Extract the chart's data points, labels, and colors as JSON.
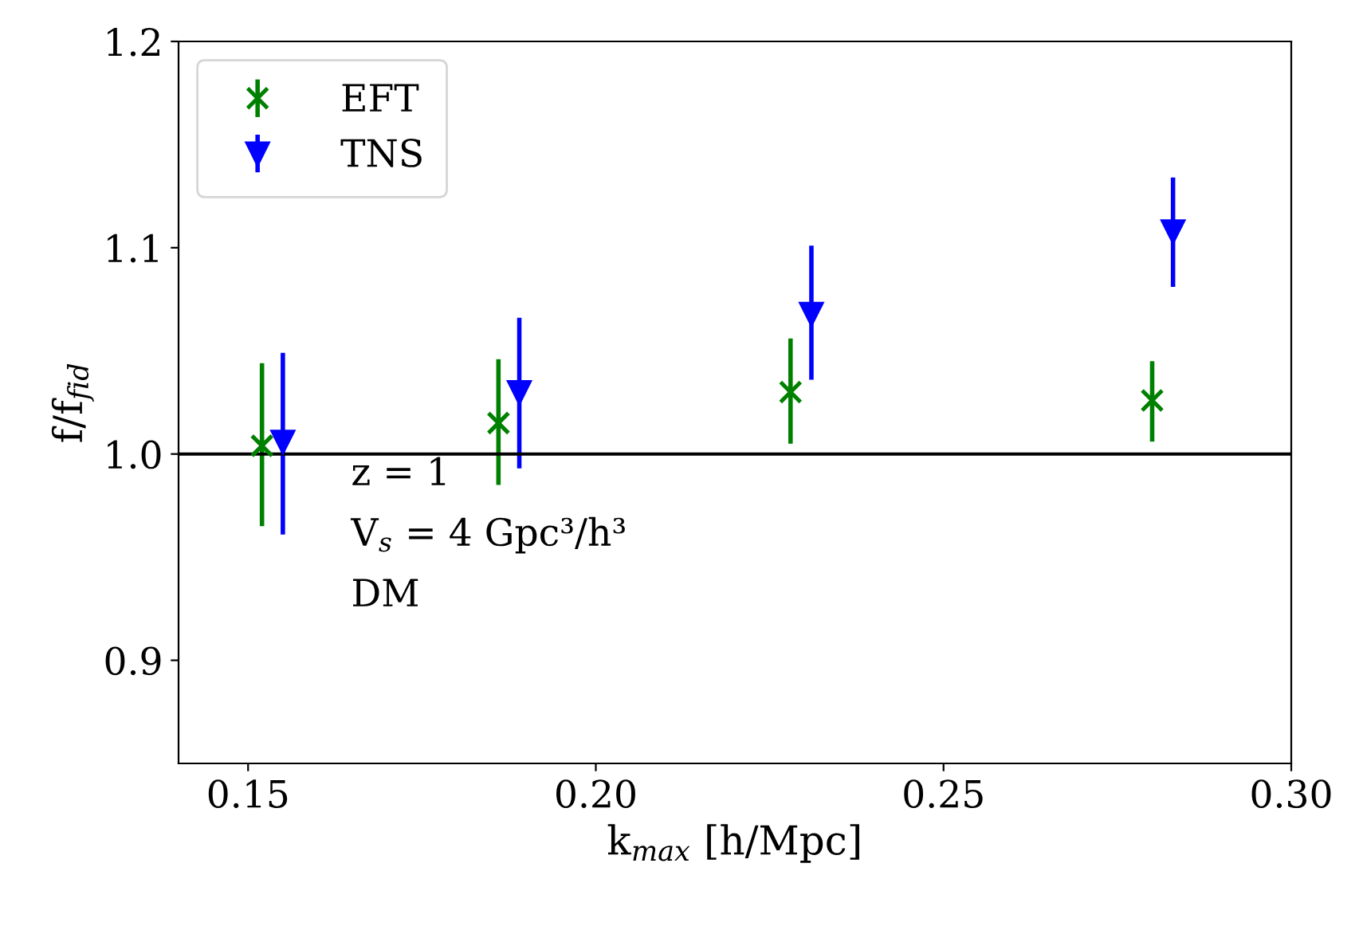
{
  "chart_data": {
    "type": "scatter",
    "xlabel": "k$_{max}$ [h/Mpc]",
    "ylabel": "f/f$_{fid}$",
    "series": [
      {
        "name": "EFT",
        "color": "#008000",
        "marker": "cross",
        "x": [
          0.152,
          0.186,
          0.228,
          0.28
        ],
        "values": [
          1.004,
          1.015,
          1.03,
          1.026
        ],
        "errors": [
          [
            0.965,
            1.044
          ],
          [
            0.985,
            1.046
          ],
          [
            1.005,
            1.056
          ],
          [
            1.006,
            1.045
          ]
        ]
      },
      {
        "name": "TNS",
        "color": "#0000ff",
        "marker": "triangle",
        "x": [
          0.155,
          0.189,
          0.231,
          0.283
        ],
        "values": [
          1.006,
          1.03,
          1.068,
          1.108
        ],
        "errors": [
          [
            0.961,
            1.049
          ],
          [
            0.993,
            1.066
          ],
          [
            1.036,
            1.101
          ],
          [
            1.081,
            1.134
          ]
        ]
      }
    ],
    "xlim": [
      0.14,
      0.3
    ],
    "ylim": [
      0.85,
      1.2
    ],
    "xticks": [
      {
        "value": 0.15,
        "label": "0.15"
      },
      {
        "value": 0.2,
        "label": "0.20"
      },
      {
        "value": 0.25,
        "label": "0.25"
      },
      {
        "value": 0.3,
        "label": "0.30"
      }
    ],
    "yticks": [
      {
        "value": 0.9,
        "label": "0.9"
      },
      {
        "value": 1.0,
        "label": "1.0"
      },
      {
        "value": 1.1,
        "label": "1.1"
      },
      {
        "value": 1.2,
        "label": "1.2"
      }
    ],
    "ref_lines": [
      {
        "axis": "y",
        "value": 1.0,
        "color": "#000000"
      }
    ],
    "annotations": [
      "z = 1",
      "V$_{s}$ = 4 Gpc³/h³",
      "DM"
    ],
    "legend": "top left",
    "grid": false
  }
}
